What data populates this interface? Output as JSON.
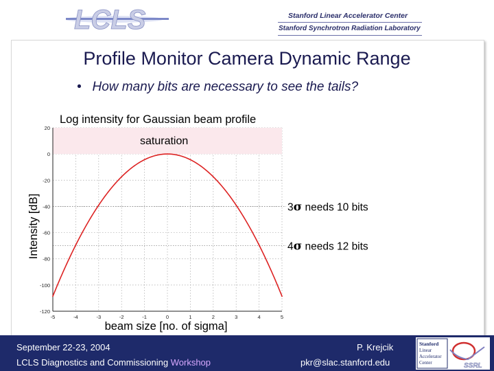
{
  "header": {
    "logo_text": "LCLS",
    "lab_line1": "Stanford Linear Accelerator Center",
    "lab_line2": "Stanford Synchrotron Radiation Laboratory"
  },
  "slide": {
    "title": "Profile Monitor Camera Dynamic Range",
    "bullet": "How many bits are necessary to see the tails?"
  },
  "chart_data": {
    "type": "line",
    "title": "Log intensity for Gaussian beam profile",
    "xlabel": "beam size [no. of sigma]",
    "ylabel": "Intensity [dB]",
    "xlim": [
      -5,
      5
    ],
    "ylim": [
      -120,
      20
    ],
    "x_ticks": [
      -5,
      -4,
      -3,
      -2,
      -1,
      0,
      1,
      2,
      3,
      4,
      5
    ],
    "y_ticks": [
      20,
      0,
      -20,
      -40,
      -60,
      -80,
      -100,
      -120
    ],
    "grid": true,
    "series": [
      {
        "x": [
          -5,
          -4,
          -3,
          -2,
          -1,
          0,
          1,
          2,
          3,
          4,
          5
        ],
        "y": [
          -108.6,
          -69.5,
          -39.1,
          -17.4,
          -4.3,
          0,
          -4.3,
          -17.4,
          -39.1,
          -69.5,
          -108.6
        ],
        "color": "#dd2222"
      }
    ],
    "band": {
      "label": "saturation",
      "y_range": [
        0,
        20
      ],
      "color": "#fbe8ec"
    },
    "reference_lines": [
      {
        "y": -40,
        "label_num": "3",
        "label_sym": "σ",
        "label_rest": " needs 10 bits"
      },
      {
        "y": -70,
        "label_num": "4",
        "label_sym": "σ",
        "label_rest": " needs 12 bits"
      }
    ]
  },
  "footer": {
    "date": "September 22-23, 2004",
    "workshop_prefix": "LCLS Diagnostics and Commissioning ",
    "workshop_hl": "Workshop",
    "author": "P. Krejcik",
    "email": "pkr@slac.stanford.edu",
    "logo_line1": "Stanford",
    "logo_line2": "Linear",
    "logo_line3": "Accelerator",
    "logo_line4": "Center",
    "logo_text": "SSRL"
  }
}
